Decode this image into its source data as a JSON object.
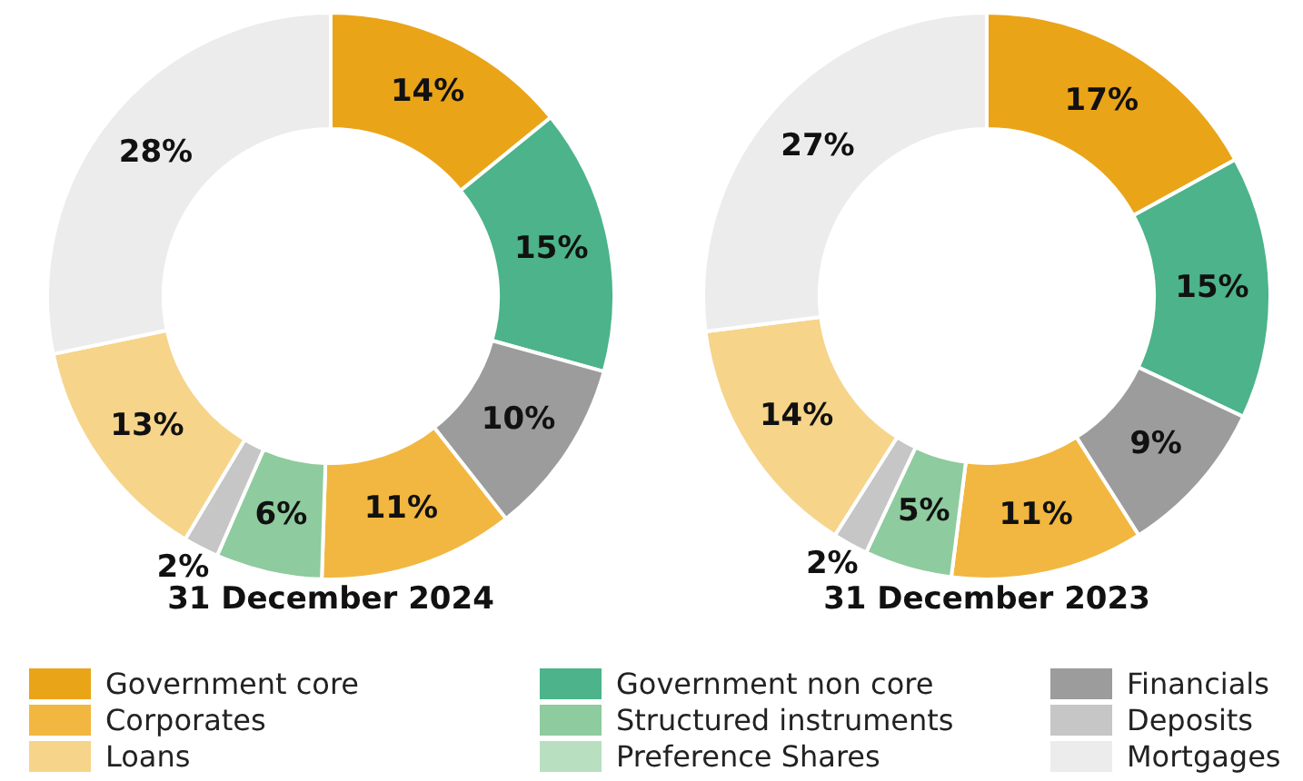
{
  "chart_data": [
    {
      "type": "donut",
      "title": "31 December 2024",
      "legend": "bottom",
      "categories": [
        "Government core",
        "Government non core",
        "Financials",
        "Corporates",
        "Structured instruments",
        "Deposits",
        "Loans",
        "Preference Shares",
        "Mortgages"
      ],
      "values": [
        14,
        15,
        10,
        11,
        6,
        2,
        13,
        0,
        28
      ],
      "value_labels": [
        "14%",
        "15%",
        "10%",
        "11%",
        "6%",
        "2%",
        "13%",
        null,
        "28%"
      ],
      "colors": [
        "#eaa418",
        "#4cb38a",
        "#9c9c9c",
        "#f2b740",
        "#8ecb9e",
        "#c6c6c6",
        "#f6d48a",
        "#b8dfc0",
        "#ececec"
      ]
    },
    {
      "type": "donut",
      "title": "31 December 2023",
      "categories": [
        null,
        null,
        null,
        null,
        null,
        null,
        null,
        null,
        null
      ],
      "values": [
        17,
        15,
        9,
        11,
        5,
        2,
        14,
        0,
        27
      ],
      "value_labels": [
        "17%",
        "15%",
        "9%",
        "11%",
        "5%",
        "2%",
        "14%",
        null,
        "27%"
      ],
      "colors": [
        "#eaa418",
        "#4cb38a",
        "#9c9c9c",
        "#f2b740",
        "#8ecb9e",
        "#c6c6c6",
        "#f6d48a",
        "#b8dfc0",
        "#ececec"
      ]
    }
  ]
}
